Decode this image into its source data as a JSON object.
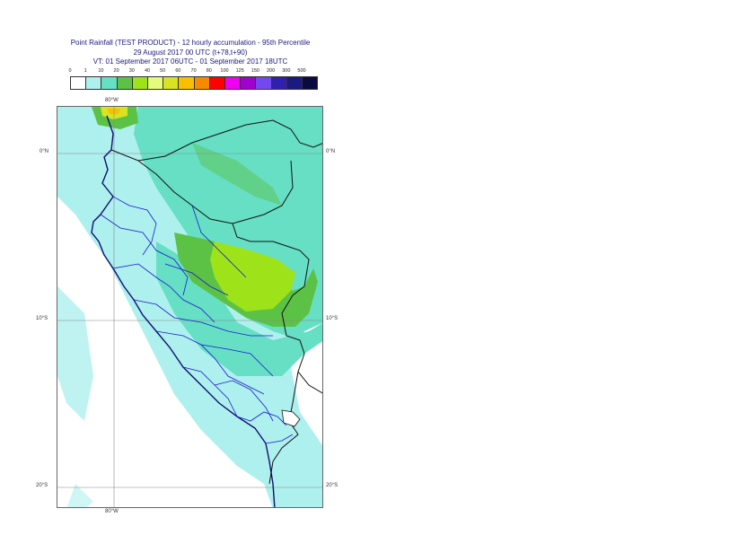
{
  "title": {
    "line1": "Point Rainfall (TEST PRODUCT) - 12 hourly accumulation - 95th Percentile",
    "line2": "29 August 2017 00 UTC (t+78,t+90)",
    "line3": "VT: 01 September 2017 06UTC - 01 September 2017 18UTC"
  },
  "legend": {
    "ticks": [
      "0",
      "1",
      "10",
      "20",
      "30",
      "40",
      "50",
      "60",
      "70",
      "80",
      "100",
      "125",
      "150",
      "200",
      "300",
      "500"
    ],
    "colors": [
      "#ffffff",
      "#aef0ee",
      "#66dfc4",
      "#5cc245",
      "#9ee21a",
      "#e4fb7b",
      "#d8e324",
      "#f8c000",
      "#f88a00",
      "#ff0000",
      "#f000f0",
      "#a000d0",
      "#7448f0",
      "#3020b0",
      "#1a1a80",
      "#0a0a40"
    ]
  },
  "map": {
    "top_label": "80°W",
    "bottom_label": "80°W",
    "lat_labels_left": [
      "0°N",
      "10°S",
      "20°S"
    ],
    "lat_labels_right": [
      "0°N",
      "10°S",
      "20°S"
    ]
  }
}
